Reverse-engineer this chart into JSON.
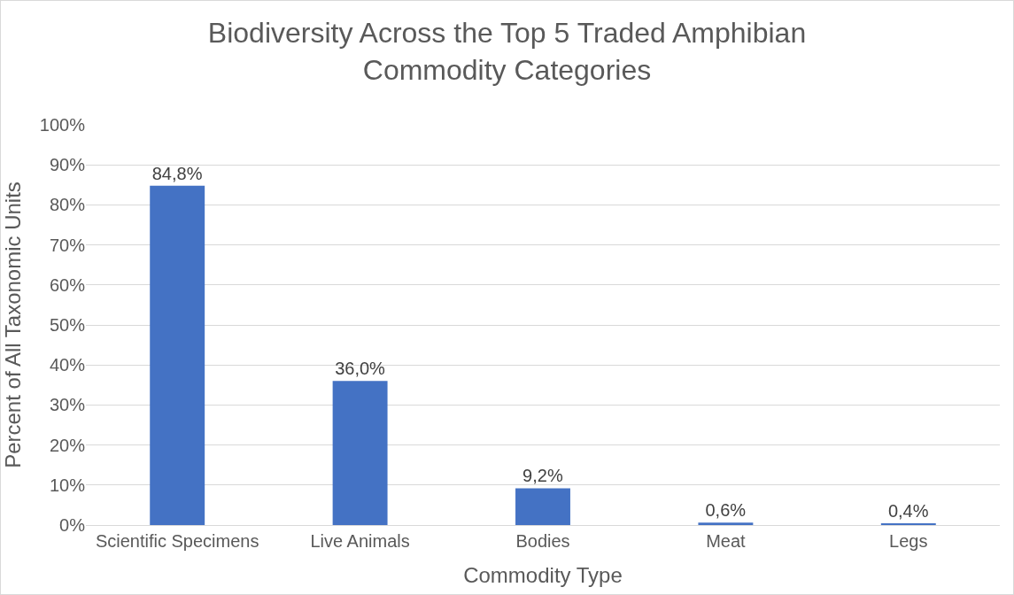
{
  "chart_data": {
    "type": "bar",
    "title": "Biodiversity Across the Top 5 Traded Amphibian Commodity Categories",
    "xlabel": "Commodity Type",
    "ylabel": "Percent of All Taxonomic Units",
    "categories": [
      "Scientific Specimens",
      "Live Animals",
      "Bodies",
      "Meat",
      "Legs"
    ],
    "values": [
      84.8,
      36.0,
      9.2,
      0.6,
      0.4
    ],
    "value_labels": [
      "84,8%",
      "36,0%",
      "9,2%",
      "0,6%",
      "0,4%"
    ],
    "color": "#4472c4",
    "ylim": [
      0,
      100
    ],
    "yticks": [
      {
        "value": 0,
        "label": "0%"
      },
      {
        "value": 10,
        "label": "10%"
      },
      {
        "value": 20,
        "label": "20%"
      },
      {
        "value": 30,
        "label": "30%"
      },
      {
        "value": 40,
        "label": "40%"
      },
      {
        "value": 50,
        "label": "50%"
      },
      {
        "value": 60,
        "label": "60%"
      },
      {
        "value": 70,
        "label": "70%"
      },
      {
        "value": 80,
        "label": "80%"
      },
      {
        "value": 90,
        "label": "90%"
      },
      {
        "value": 100,
        "label": "100%"
      }
    ],
    "grid": "y"
  }
}
